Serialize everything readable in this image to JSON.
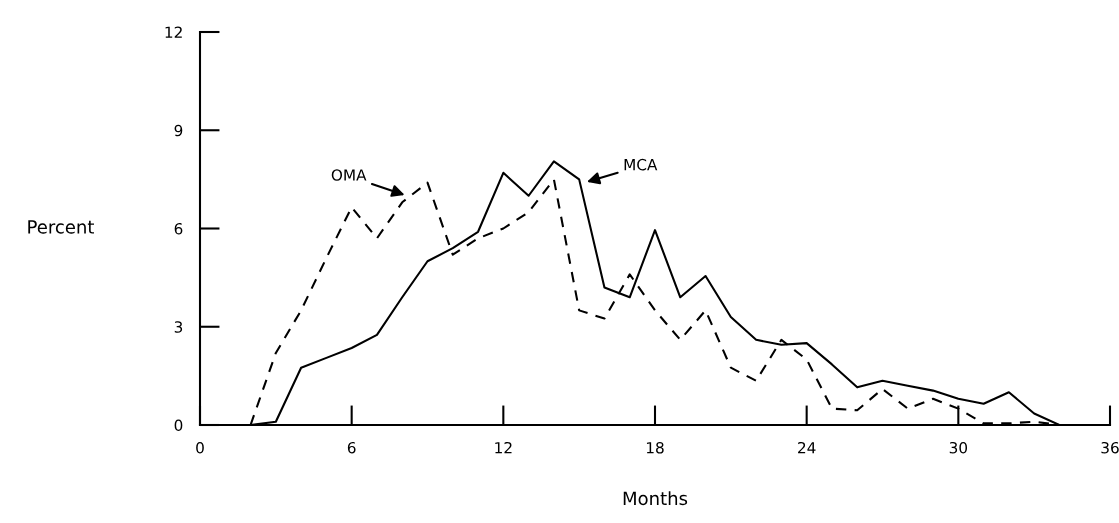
{
  "chart_data": {
    "type": "line",
    "xlabel": "Months",
    "ylabel": "Percent",
    "x": [
      2,
      3,
      4,
      5,
      6,
      7,
      8,
      9,
      10,
      11,
      12,
      13,
      14,
      15,
      16,
      17,
      18,
      19,
      20,
      21,
      22,
      23,
      24,
      25,
      26,
      27,
      28,
      29,
      30,
      31,
      32,
      33,
      34
    ],
    "series": [
      {
        "color": "#000000",
        "line_style": "solid",
        "values": [
          0,
          0.1,
          1.75,
          2.05,
          2.35,
          2.75,
          3.9,
          5.0,
          5.4,
          5.9,
          7.7,
          7.0,
          8.05,
          7.5,
          4.2,
          3.9,
          5.95,
          3.9,
          4.55,
          3.3,
          2.6,
          2.45,
          2.5,
          1.85,
          1.15,
          1.35,
          1.2,
          1.05,
          0.8,
          0.65,
          1.0,
          0.35,
          0
        ]
      },
      {
        "color": "#000000",
        "line_style": "dashed",
        "values": [
          0,
          2.2,
          3.5,
          5.1,
          6.65,
          5.7,
          6.8,
          7.4,
          5.2,
          5.7,
          6.0,
          6.5,
          7.5,
          3.5,
          3.25,
          4.6,
          3.5,
          2.6,
          3.5,
          1.75,
          1.35,
          2.6,
          2.0,
          0.5,
          0.45,
          1.1,
          0.5,
          0.8,
          0.5,
          0.05,
          0.05,
          0.1,
          0
        ]
      }
    ],
    "annotations": [
      {
        "text": "OMA",
        "x": 8.2,
        "y": 7.0
      },
      {
        "text": "MCA",
        "x": 15.2,
        "y": 7.4
      }
    ],
    "xlim": [
      0,
      36
    ],
    "xticks": [
      0,
      6,
      12,
      18,
      24,
      30,
      36
    ],
    "ylim": [
      0,
      12
    ],
    "yticks": [
      0,
      3,
      6,
      9,
      12
    ],
    "grid": false,
    "legend": false
  }
}
